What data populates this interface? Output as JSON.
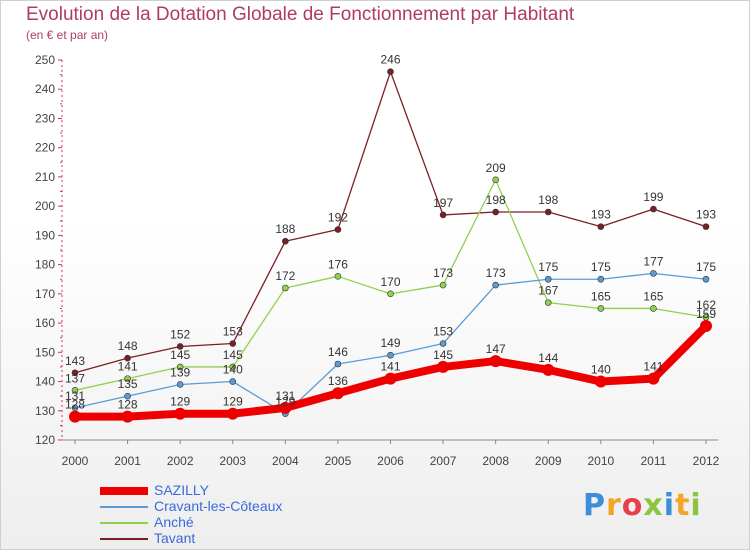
{
  "title": "Evolution de la Dotation Globale de Fonctionnement par Habitant",
  "subtitle": "(en € et par an)",
  "logo": {
    "text": "Proxiti"
  },
  "chart_data": {
    "type": "line",
    "title": "Evolution de la Dotation Globale de Fonctionnement par Habitant",
    "subtitle": "(en € et par an)",
    "xlabel": "",
    "ylabel": "",
    "ylim": [
      120,
      250
    ],
    "y_ticks": [
      120,
      130,
      140,
      150,
      160,
      170,
      180,
      190,
      200,
      210,
      220,
      230,
      240,
      250
    ],
    "x": [
      "2000",
      "2001",
      "2002",
      "2003",
      "2004",
      "2005",
      "2006",
      "2007",
      "2008",
      "2009",
      "2010",
      "2011",
      "2012"
    ],
    "grid": false,
    "legend_position": "bottom-left",
    "series": [
      {
        "name": "SAZILLY",
        "color": "#ee0000",
        "values": [
          128,
          128,
          129,
          129,
          131,
          136,
          141,
          145,
          147,
          144,
          140,
          141,
          159
        ]
      },
      {
        "name": "Cravant-les-Côteaux",
        "color": "#5b9bd5",
        "values": [
          131,
          135,
          139,
          140,
          129,
          146,
          149,
          153,
          173,
          175,
          175,
          177,
          175
        ]
      },
      {
        "name": "Anché",
        "color": "#8fd14f",
        "values": [
          137,
          141,
          145,
          145,
          172,
          176,
          170,
          173,
          209,
          167,
          165,
          165,
          162
        ]
      },
      {
        "name": "Tavant",
        "color": "#7a1f24",
        "values": [
          143,
          148,
          152,
          153,
          188,
          192,
          246,
          197,
          198,
          198,
          193,
          199,
          193
        ]
      }
    ],
    "data_labels": {
      "SAZILLY": [
        "128",
        "128",
        "129",
        "129",
        "131",
        "136",
        "141",
        "145",
        "147",
        "144",
        "140",
        "141",
        "159"
      ],
      "Cravant-les-Côteaux": [
        "131",
        "135",
        "139",
        "140",
        "129",
        "146",
        "149",
        "153",
        "173",
        "175",
        "175",
        "177",
        "175"
      ],
      "Anché": [
        "137",
        "141",
        "145",
        "145",
        "172",
        "176",
        "170",
        "173",
        "209",
        "167",
        "165",
        "165",
        "162"
      ],
      "Tavant": [
        "143",
        "148",
        "152",
        "153",
        "188",
        "192",
        "246",
        "197",
        "198",
        "198",
        "193",
        "199",
        "193"
      ]
    }
  }
}
